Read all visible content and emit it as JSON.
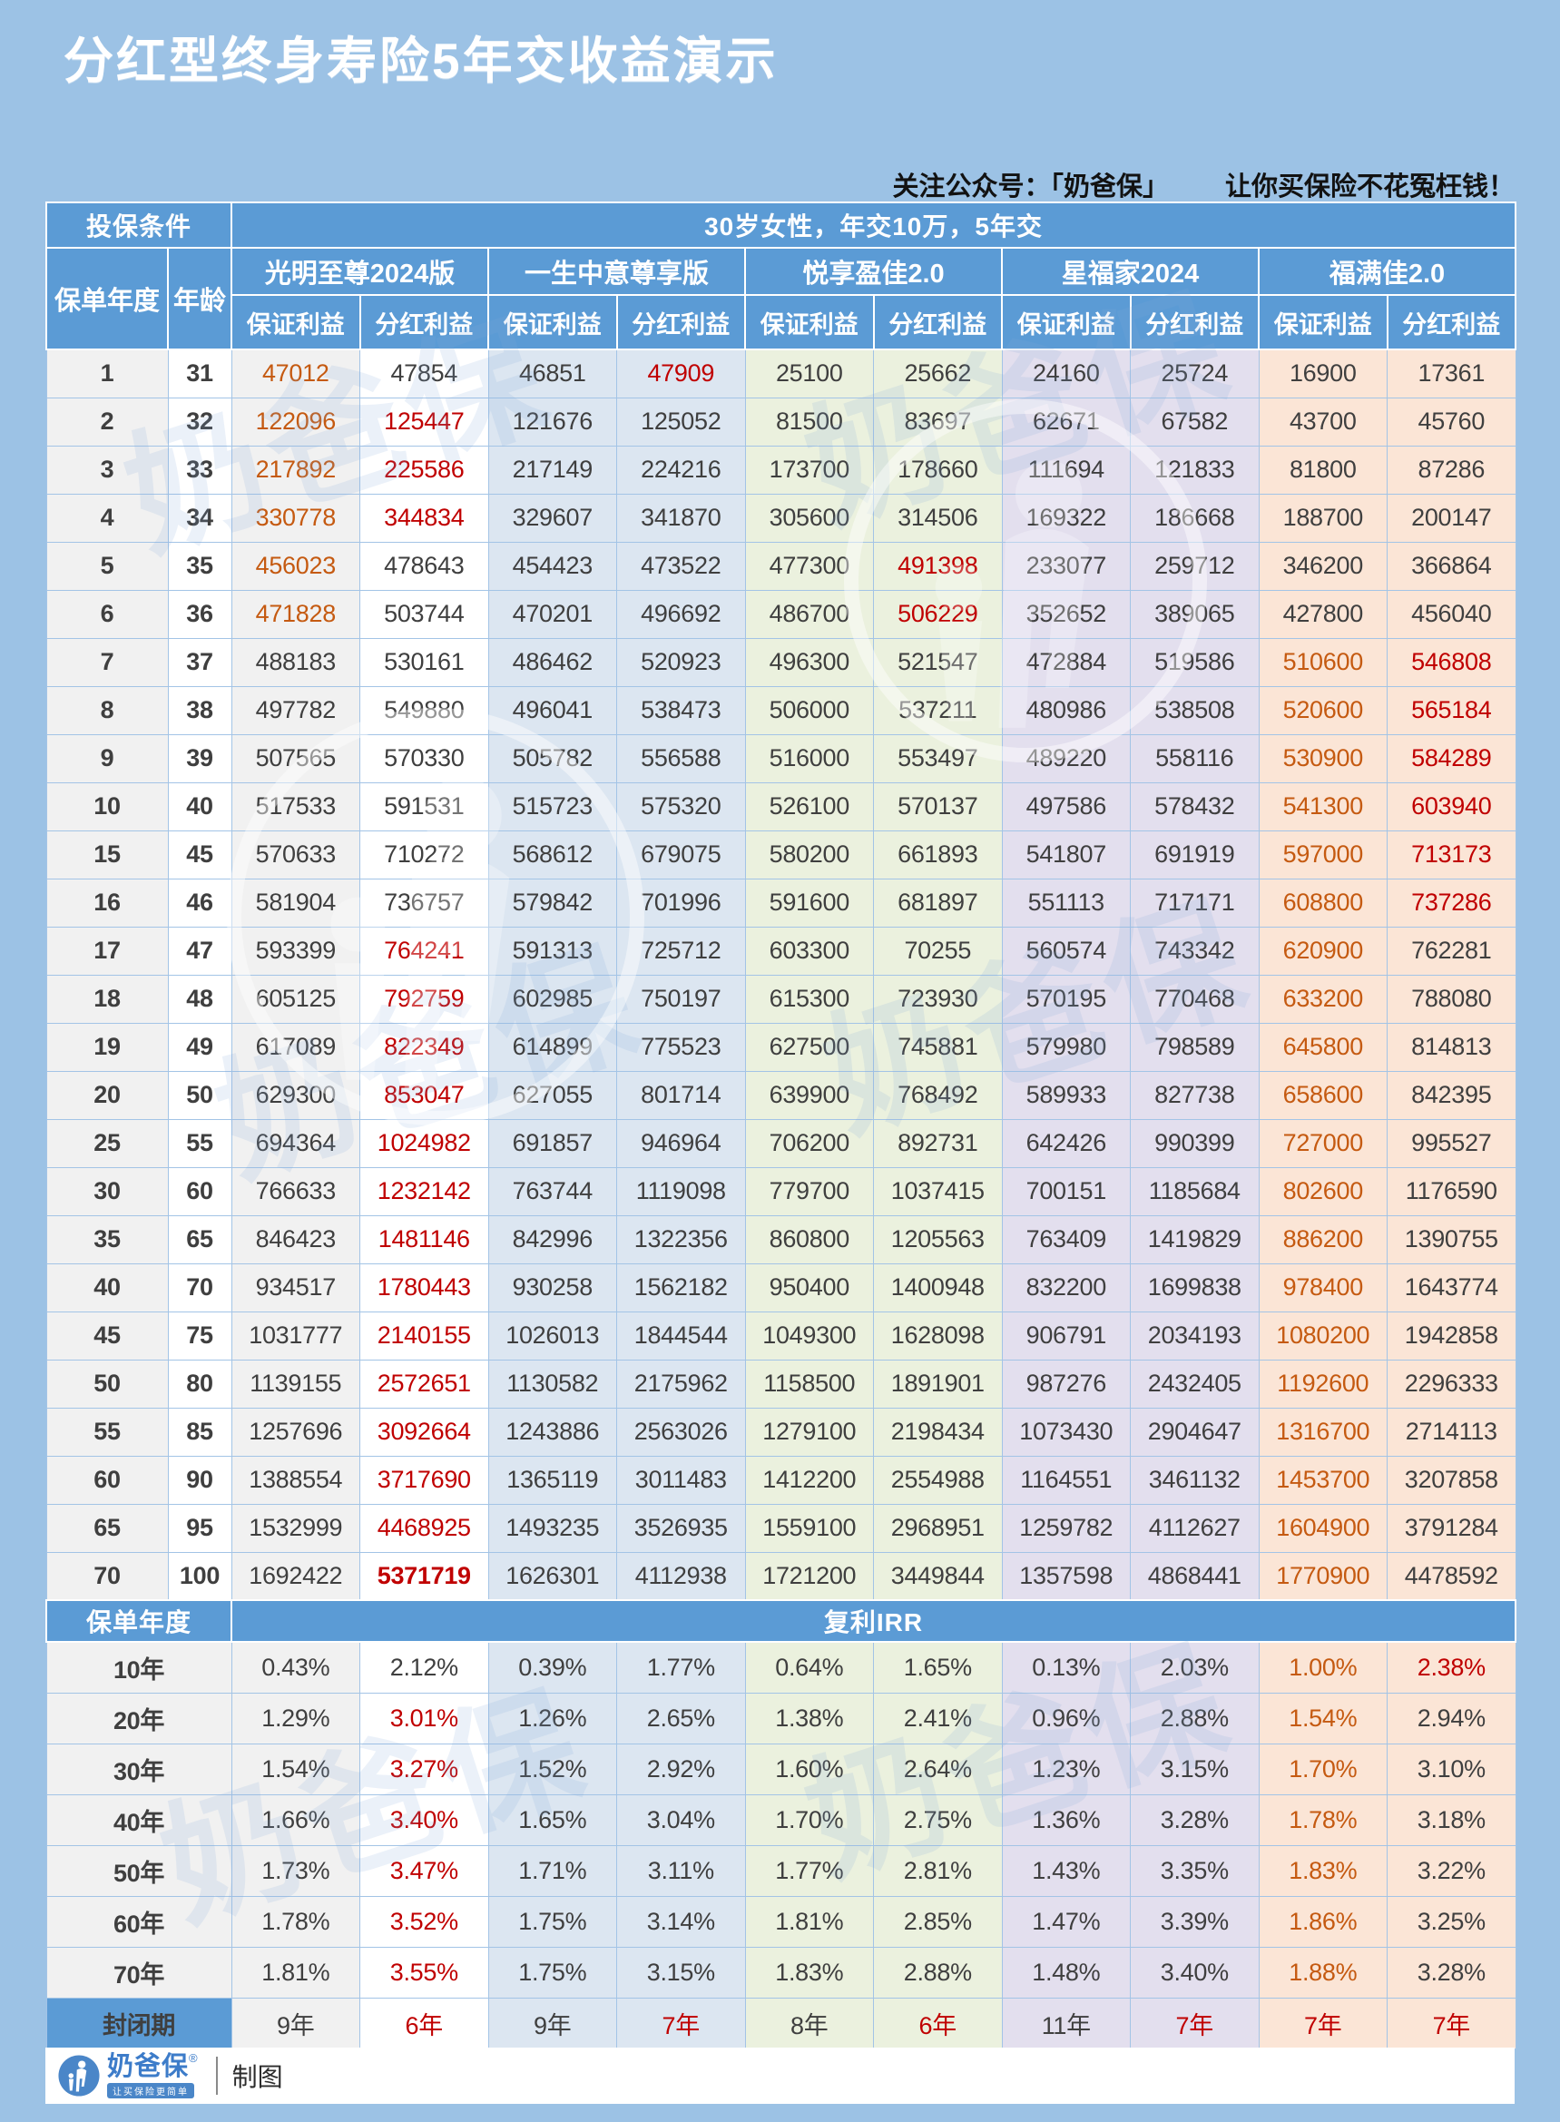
{
  "title": "分红型终身寿险5年交收益演示",
  "note": {
    "prefix": "关注公众号：「奶爸保」",
    "suffix": "让你买保险不花冤枉钱！"
  },
  "watermark": {
    "text": "奶爸保"
  },
  "table": {
    "condition_label": "投保条件",
    "condition_value": "30岁女性，年交10万，5年交",
    "col1": "保单年度",
    "col2": "年龄",
    "products": [
      "光明至尊2024版",
      "一生中意尊享版",
      "悦享盈佳2.0",
      "星福家2024",
      "福满佳2.0"
    ],
    "sub_headers": [
      "保证利益",
      "分红利益"
    ],
    "rows": [
      {
        "year": "1",
        "age": "31",
        "values": [
          "47012",
          "47854",
          "46851",
          "47909",
          "25100",
          "25662",
          "24160",
          "25724",
          "16900",
          "17361"
        ],
        "styles": [
          "o",
          "",
          "",
          "r",
          "",
          "",
          "",
          "",
          "",
          ""
        ]
      },
      {
        "year": "2",
        "age": "32",
        "values": [
          "122096",
          "125447",
          "121676",
          "125052",
          "81500",
          "83697",
          "62671",
          "67582",
          "43700",
          "45760"
        ],
        "styles": [
          "o",
          "r",
          "",
          "",
          "",
          "",
          "",
          "",
          "",
          ""
        ]
      },
      {
        "year": "3",
        "age": "33",
        "values": [
          "217892",
          "225586",
          "217149",
          "224216",
          "173700",
          "178660",
          "111694",
          "121833",
          "81800",
          "87286"
        ],
        "styles": [
          "o",
          "r",
          "",
          "",
          "",
          "",
          "",
          "",
          "",
          ""
        ]
      },
      {
        "year": "4",
        "age": "34",
        "values": [
          "330778",
          "344834",
          "329607",
          "341870",
          "305600",
          "314506",
          "169322",
          "186668",
          "188700",
          "200147"
        ],
        "styles": [
          "o",
          "r",
          "",
          "",
          "",
          "",
          "",
          "",
          "",
          ""
        ]
      },
      {
        "year": "5",
        "age": "35",
        "values": [
          "456023",
          "478643",
          "454423",
          "473522",
          "477300",
          "491398",
          "233077",
          "259712",
          "346200",
          "366864"
        ],
        "styles": [
          "o",
          "",
          "",
          "",
          "",
          "r",
          "",
          "",
          "",
          ""
        ]
      },
      {
        "year": "6",
        "age": "36",
        "values": [
          "471828",
          "503744",
          "470201",
          "496692",
          "486700",
          "506229",
          "352652",
          "389065",
          "427800",
          "456040"
        ],
        "styles": [
          "o",
          "",
          "",
          "",
          "",
          "r",
          "",
          "",
          "",
          ""
        ]
      },
      {
        "year": "7",
        "age": "37",
        "values": [
          "488183",
          "530161",
          "486462",
          "520923",
          "496300",
          "521547",
          "472884",
          "519586",
          "510600",
          "546808"
        ],
        "styles": [
          "",
          "",
          "",
          "",
          "",
          "",
          "",
          "",
          "o",
          "r"
        ]
      },
      {
        "year": "8",
        "age": "38",
        "values": [
          "497782",
          "549880",
          "496041",
          "538473",
          "506000",
          "537211",
          "480986",
          "538508",
          "520600",
          "565184"
        ],
        "styles": [
          "",
          "",
          "",
          "",
          "",
          "",
          "",
          "",
          "o",
          "r"
        ]
      },
      {
        "year": "9",
        "age": "39",
        "values": [
          "507565",
          "570330",
          "505782",
          "556588",
          "516000",
          "553497",
          "489220",
          "558116",
          "530900",
          "584289"
        ],
        "styles": [
          "",
          "",
          "",
          "",
          "",
          "",
          "",
          "",
          "o",
          "r"
        ]
      },
      {
        "year": "10",
        "age": "40",
        "values": [
          "517533",
          "591531",
          "515723",
          "575320",
          "526100",
          "570137",
          "497586",
          "578432",
          "541300",
          "603940"
        ],
        "styles": [
          "",
          "",
          "",
          "",
          "",
          "",
          "",
          "",
          "o",
          "r"
        ]
      },
      {
        "year": "15",
        "age": "45",
        "values": [
          "570633",
          "710272",
          "568612",
          "679075",
          "580200",
          "661893",
          "541807",
          "691919",
          "597000",
          "713173"
        ],
        "styles": [
          "",
          "",
          "",
          "",
          "",
          "",
          "",
          "",
          "o",
          "r"
        ]
      },
      {
        "year": "16",
        "age": "46",
        "values": [
          "581904",
          "736757",
          "579842",
          "701996",
          "591600",
          "681897",
          "551113",
          "717171",
          "608800",
          "737286"
        ],
        "styles": [
          "",
          "",
          "",
          "",
          "",
          "",
          "",
          "",
          "o",
          "r"
        ]
      },
      {
        "year": "17",
        "age": "47",
        "values": [
          "593399",
          "764241",
          "591313",
          "725712",
          "603300",
          "70255",
          "560574",
          "743342",
          "620900",
          "762281"
        ],
        "styles": [
          "",
          "r",
          "",
          "",
          "",
          "",
          "",
          "",
          "o",
          ""
        ]
      },
      {
        "year": "18",
        "age": "48",
        "values": [
          "605125",
          "792759",
          "602985",
          "750197",
          "615300",
          "723930",
          "570195",
          "770468",
          "633200",
          "788080"
        ],
        "styles": [
          "",
          "r",
          "",
          "",
          "",
          "",
          "",
          "",
          "o",
          ""
        ]
      },
      {
        "year": "19",
        "age": "49",
        "values": [
          "617089",
          "822349",
          "614899",
          "775523",
          "627500",
          "745881",
          "579980",
          "798589",
          "645800",
          "814813"
        ],
        "styles": [
          "",
          "r",
          "",
          "",
          "",
          "",
          "",
          "",
          "o",
          ""
        ]
      },
      {
        "year": "20",
        "age": "50",
        "values": [
          "629300",
          "853047",
          "627055",
          "801714",
          "639900",
          "768492",
          "589933",
          "827738",
          "658600",
          "842395"
        ],
        "styles": [
          "",
          "r",
          "",
          "",
          "",
          "",
          "",
          "",
          "o",
          ""
        ]
      },
      {
        "year": "25",
        "age": "55",
        "values": [
          "694364",
          "1024982",
          "691857",
          "946964",
          "706200",
          "892731",
          "642426",
          "990399",
          "727000",
          "995527"
        ],
        "styles": [
          "",
          "r",
          "",
          "",
          "",
          "",
          "",
          "",
          "o",
          ""
        ]
      },
      {
        "year": "30",
        "age": "60",
        "values": [
          "766633",
          "1232142",
          "763744",
          "1119098",
          "779700",
          "1037415",
          "700151",
          "1185684",
          "802600",
          "1176590"
        ],
        "styles": [
          "",
          "r",
          "",
          "",
          "",
          "",
          "",
          "",
          "o",
          ""
        ]
      },
      {
        "year": "35",
        "age": "65",
        "values": [
          "846423",
          "1481146",
          "842996",
          "1322356",
          "860800",
          "1205563",
          "763409",
          "1419829",
          "886200",
          "1390755"
        ],
        "styles": [
          "",
          "r",
          "",
          "",
          "",
          "",
          "",
          "",
          "o",
          ""
        ]
      },
      {
        "year": "40",
        "age": "70",
        "values": [
          "934517",
          "1780443",
          "930258",
          "1562182",
          "950400",
          "1400948",
          "832200",
          "1699838",
          "978400",
          "1643774"
        ],
        "styles": [
          "",
          "r",
          "",
          "",
          "",
          "",
          "",
          "",
          "o",
          ""
        ]
      },
      {
        "year": "45",
        "age": "75",
        "values": [
          "1031777",
          "2140155",
          "1026013",
          "1844544",
          "1049300",
          "1628098",
          "906791",
          "2034193",
          "1080200",
          "1942858"
        ],
        "styles": [
          "",
          "r",
          "",
          "",
          "",
          "",
          "",
          "",
          "o",
          ""
        ]
      },
      {
        "year": "50",
        "age": "80",
        "values": [
          "1139155",
          "2572651",
          "1130582",
          "2175962",
          "1158500",
          "1891901",
          "987276",
          "2432405",
          "1192600",
          "2296333"
        ],
        "styles": [
          "",
          "r",
          "",
          "",
          "",
          "",
          "",
          "",
          "o",
          ""
        ]
      },
      {
        "year": "55",
        "age": "85",
        "values": [
          "1257696",
          "3092664",
          "1243886",
          "2563026",
          "1279100",
          "2198434",
          "1073430",
          "2904647",
          "1316700",
          "2714113"
        ],
        "styles": [
          "",
          "r",
          "",
          "",
          "",
          "",
          "",
          "",
          "o",
          ""
        ]
      },
      {
        "year": "60",
        "age": "90",
        "values": [
          "1388554",
          "3717690",
          "1365119",
          "3011483",
          "1412200",
          "2554988",
          "1164551",
          "3461132",
          "1453700",
          "3207858"
        ],
        "styles": [
          "",
          "r",
          "",
          "",
          "",
          "",
          "",
          "",
          "o",
          ""
        ]
      },
      {
        "year": "65",
        "age": "95",
        "values": [
          "1532999",
          "4468925",
          "1493235",
          "3526935",
          "1559100",
          "2968951",
          "1259782",
          "4112627",
          "1604900",
          "3791284"
        ],
        "styles": [
          "",
          "r",
          "",
          "",
          "",
          "",
          "",
          "",
          "o",
          ""
        ]
      },
      {
        "year": "70",
        "age": "100",
        "values": [
          "1692422",
          "5371719",
          "1626301",
          "4112938",
          "1721200",
          "3449844",
          "1357598",
          "4868441",
          "1770900",
          "4478592"
        ],
        "styles": [
          "",
          "rb",
          "",
          "",
          "",
          "",
          "",
          "",
          "o",
          ""
        ]
      }
    ],
    "irr": {
      "label": "保单年度",
      "header": "复利IRR",
      "rows": [
        {
          "label": "10年",
          "values": [
            "0.43%",
            "2.12%",
            "0.39%",
            "1.77%",
            "0.64%",
            "1.65%",
            "0.13%",
            "2.03%",
            "1.00%",
            "2.38%"
          ],
          "styles": [
            "",
            "",
            "",
            "",
            "",
            "",
            "",
            "",
            "o",
            "r"
          ]
        },
        {
          "label": "20年",
          "values": [
            "1.29%",
            "3.01%",
            "1.26%",
            "2.65%",
            "1.38%",
            "2.41%",
            "0.96%",
            "2.88%",
            "1.54%",
            "2.94%"
          ],
          "styles": [
            "",
            "r",
            "",
            "",
            "",
            "",
            "",
            "",
            "o",
            ""
          ]
        },
        {
          "label": "30年",
          "values": [
            "1.54%",
            "3.27%",
            "1.52%",
            "2.92%",
            "1.60%",
            "2.64%",
            "1.23%",
            "3.15%",
            "1.70%",
            "3.10%"
          ],
          "styles": [
            "",
            "r",
            "",
            "",
            "",
            "",
            "",
            "",
            "o",
            ""
          ]
        },
        {
          "label": "40年",
          "values": [
            "1.66%",
            "3.40%",
            "1.65%",
            "3.04%",
            "1.70%",
            "2.75%",
            "1.36%",
            "3.28%",
            "1.78%",
            "3.18%"
          ],
          "styles": [
            "",
            "r",
            "",
            "",
            "",
            "",
            "",
            "",
            "o",
            ""
          ]
        },
        {
          "label": "50年",
          "values": [
            "1.73%",
            "3.47%",
            "1.71%",
            "3.11%",
            "1.77%",
            "2.81%",
            "1.43%",
            "3.35%",
            "1.83%",
            "3.22%"
          ],
          "styles": [
            "",
            "r",
            "",
            "",
            "",
            "",
            "",
            "",
            "o",
            ""
          ]
        },
        {
          "label": "60年",
          "values": [
            "1.78%",
            "3.52%",
            "1.75%",
            "3.14%",
            "1.81%",
            "2.85%",
            "1.47%",
            "3.39%",
            "1.86%",
            "3.25%"
          ],
          "styles": [
            "",
            "r",
            "",
            "",
            "",
            "",
            "",
            "",
            "o",
            ""
          ]
        },
        {
          "label": "70年",
          "values": [
            "1.81%",
            "3.55%",
            "1.75%",
            "3.15%",
            "1.83%",
            "2.88%",
            "1.48%",
            "3.40%",
            "1.88%",
            "3.28%"
          ],
          "styles": [
            "",
            "r",
            "",
            "",
            "",
            "",
            "",
            "",
            "o",
            ""
          ]
        }
      ]
    },
    "closed": {
      "label": "封闭期",
      "values": [
        "9年",
        "6年",
        "9年",
        "7年",
        "8年",
        "6年",
        "11年",
        "7年",
        "7年",
        "7年"
      ],
      "styles": [
        "",
        "r",
        "",
        "r",
        "",
        "r",
        "",
        "r",
        "r",
        "r"
      ]
    }
  },
  "footer": {
    "brand": "奶爸保",
    "reg": "®",
    "tagline": "让买保险更简单",
    "credit": "制图"
  }
}
